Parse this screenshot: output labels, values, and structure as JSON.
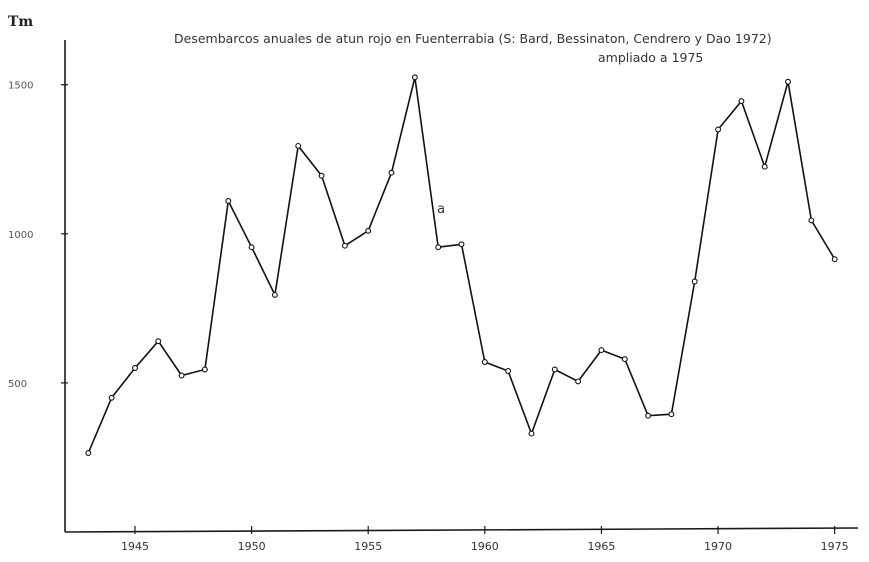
{
  "chart_data": {
    "type": "line",
    "title": "Desembarcos anuales de atun rojo en Fuenterrabia (S: Bard, Bessinaton, Cendrero y Dao 1972)",
    "subtitle": "ampliado a 1975",
    "ylabel": "Tm",
    "xlabel": "",
    "annotation": {
      "text": "a",
      "x": 1958,
      "y": 1070
    },
    "xlim": [
      1942,
      1976
    ],
    "ylim": [
      0,
      1650
    ],
    "x_ticks": [
      1945,
      1950,
      1955,
      1960,
      1965,
      1970,
      1975
    ],
    "y_ticks": [
      500,
      1000,
      1500
    ],
    "y_tick_labels": [
      "500",
      "1000",
      "1500"
    ],
    "grid": false,
    "x": [
      1943,
      1944,
      1945,
      1946,
      1947,
      1948,
      1949,
      1950,
      1951,
      1952,
      1953,
      1954,
      1955,
      1956,
      1957,
      1958,
      1959,
      1960,
      1961,
      1962,
      1963,
      1964,
      1965,
      1966,
      1967,
      1968,
      1969,
      1970,
      1971,
      1972,
      1973,
      1974,
      1975
    ],
    "series": [
      {
        "values": [
          265,
          450,
          550,
          640,
          525,
          545,
          1110,
          955,
          795,
          1295,
          1195,
          960,
          1010,
          1205,
          1525,
          955,
          965,
          570,
          540,
          330,
          545,
          505,
          610,
          580,
          390,
          395,
          840,
          1350,
          1445,
          1225,
          1510,
          1045,
          915
        ]
      }
    ]
  }
}
